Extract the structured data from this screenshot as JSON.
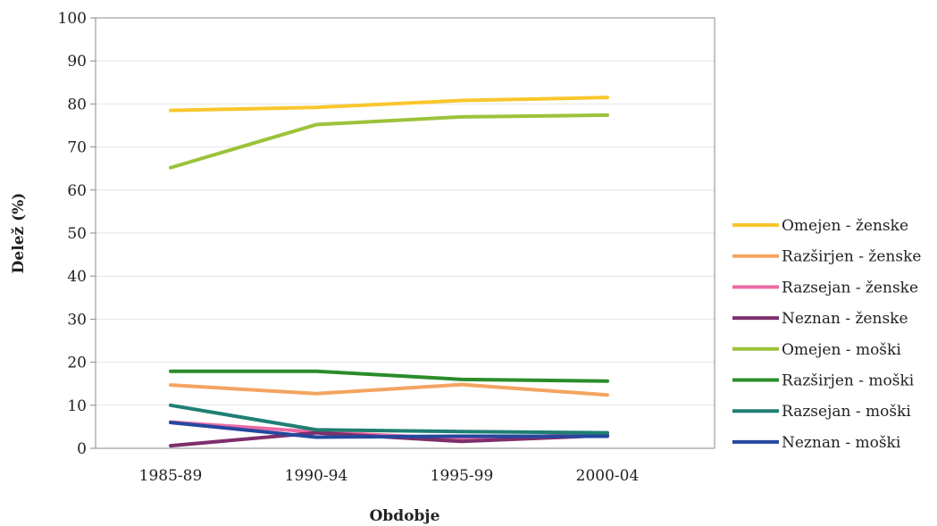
{
  "chart_data": {
    "type": "line",
    "title": "",
    "xlabel": "Obdobje",
    "ylabel": "Delež (%)",
    "ylim": [
      0,
      100
    ],
    "yticks": [
      0,
      10,
      20,
      30,
      40,
      50,
      60,
      70,
      80,
      90,
      100
    ],
    "categories": [
      "1985-89",
      "1990-94",
      "1995-99",
      "2000-04"
    ],
    "grid": "horizontal",
    "legend_position": "right",
    "series": [
      {
        "name": "Omejen - ženske",
        "color": "#f9c62d",
        "values": [
          78.5,
          79.2,
          80.8,
          81.5
        ]
      },
      {
        "name": "Razširjen - ženske",
        "color": "#f4a460",
        "values": [
          14.7,
          12.7,
          14.8,
          12.4
        ]
      },
      {
        "name": "Razsejan - ženske",
        "color": "#ec6aa6",
        "values": [
          6.1,
          3.8,
          2.2,
          3.3
        ]
      },
      {
        "name": "Neznan - ženske",
        "color": "#7e2e6c",
        "values": [
          0.6,
          3.6,
          1.6,
          3.0
        ]
      },
      {
        "name": "Omejen - moški",
        "color": "#9cc23a",
        "values": [
          65.2,
          75.2,
          77.0,
          77.4
        ]
      },
      {
        "name": "Razširjen - moški",
        "color": "#2a8c2a",
        "values": [
          17.9,
          17.9,
          16.0,
          15.6
        ]
      },
      {
        "name": "Razsejan - moški",
        "color": "#1f7f73",
        "values": [
          10.0,
          4.3,
          3.9,
          3.6
        ]
      },
      {
        "name": "Neznan - moški",
        "color": "#24489e",
        "values": [
          6.0,
          2.6,
          2.8,
          2.8
        ]
      }
    ]
  }
}
